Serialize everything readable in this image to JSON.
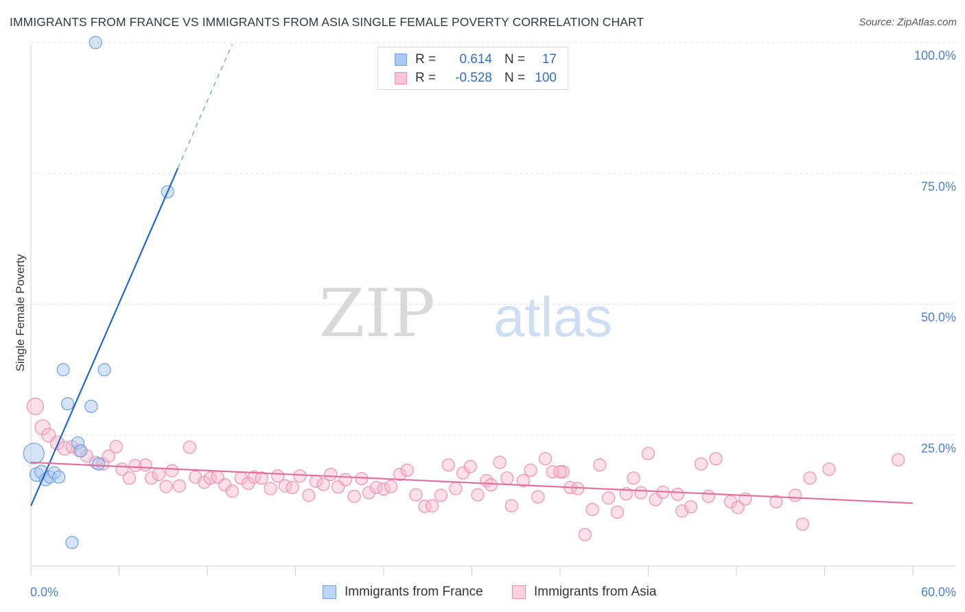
{
  "header": {
    "title": "IMMIGRANTS FROM FRANCE VS IMMIGRANTS FROM ASIA SINGLE FEMALE POVERTY CORRELATION CHART",
    "source": "Source: ZipAtlas.com"
  },
  "legend": {
    "rows": [
      {
        "r_label": "R =",
        "r_value": "0.614",
        "n_label": "N =",
        "n_value": "17"
      },
      {
        "r_label": "R =",
        "r_value": "-0.528",
        "n_label": "N =",
        "n_value": "100"
      }
    ]
  },
  "colors": {
    "france_fill": "#a9c8f2",
    "france_stroke": "#6c9fe0",
    "france_line": "#2266cc",
    "asia_fill": "#f8b8ce",
    "asia_stroke": "#ee8fb0",
    "asia_line": "#e0709a",
    "axis_label": "#4a7fcf",
    "grid": "#dddddd"
  },
  "watermark": {
    "part1": "ZIP",
    "part2": "atlas"
  },
  "chart_data": {
    "type": "scatter",
    "title": "IMMIGRANTS FROM FRANCE VS IMMIGRANTS FROM ASIA SINGLE FEMALE POVERTY CORRELATION CHART",
    "xlabel": "",
    "ylabel": "Single Female Poverty",
    "xlim": [
      0,
      60
    ],
    "ylim": [
      0,
      100
    ],
    "x_tick_labels": [
      "0.0%",
      "60.0%"
    ],
    "y_tick_labels": [
      "25.0%",
      "50.0%",
      "75.0%",
      "100.0%"
    ],
    "y_ticks": [
      25,
      50,
      75,
      100
    ],
    "grid": true,
    "series": [
      {
        "name": "Immigrants from France",
        "r": 0.614,
        "n": 17,
        "trend": {
          "x0": 0,
          "y0": 11.5,
          "x1": 10.0,
          "y1": 76.0,
          "dash_to_x": 13.7,
          "dash_to_y": 99.7
        },
        "points": [
          {
            "x": 0.2,
            "y": 21.5,
            "s": 26
          },
          {
            "x": 0.4,
            "y": 17.5,
            "s": 16
          },
          {
            "x": 0.7,
            "y": 18.0,
            "s": 15
          },
          {
            "x": 1.0,
            "y": 16.5,
            "s": 14
          },
          {
            "x": 1.3,
            "y": 17.0,
            "s": 14
          },
          {
            "x": 1.6,
            "y": 17.8,
            "s": 14
          },
          {
            "x": 1.9,
            "y": 17.0,
            "s": 14
          },
          {
            "x": 2.2,
            "y": 37.5,
            "s": 14
          },
          {
            "x": 2.5,
            "y": 31.0,
            "s": 14
          },
          {
            "x": 2.8,
            "y": 4.5,
            "s": 14
          },
          {
            "x": 3.2,
            "y": 23.5,
            "s": 14
          },
          {
            "x": 3.4,
            "y": 22.0,
            "s": 14
          },
          {
            "x": 4.1,
            "y": 30.5,
            "s": 14
          },
          {
            "x": 4.4,
            "y": 100.0,
            "s": 14
          },
          {
            "x": 4.6,
            "y": 19.5,
            "s": 14
          },
          {
            "x": 5.0,
            "y": 37.5,
            "s": 14
          },
          {
            "x": 9.3,
            "y": 71.5,
            "s": 14
          }
        ]
      },
      {
        "name": "Immigrants from Asia",
        "r": -0.528,
        "n": 100,
        "trend": {
          "x0": 0,
          "y0": 19.8,
          "x1": 60,
          "y1": 12.0
        },
        "points": [
          {
            "x": 0.3,
            "y": 30.5,
            "s": 20
          },
          {
            "x": 0.8,
            "y": 26.5,
            "s": 18
          },
          {
            "x": 1.2,
            "y": 25.0,
            "s": 16
          },
          {
            "x": 1.8,
            "y": 23.5,
            "s": 16
          },
          {
            "x": 2.3,
            "y": 22.5,
            "s": 16
          },
          {
            "x": 2.8,
            "y": 22.8,
            "s": 14
          },
          {
            "x": 3.3,
            "y": 22.0,
            "s": 14
          },
          {
            "x": 3.8,
            "y": 21.0,
            "s": 14
          },
          {
            "x": 4.4,
            "y": 19.8,
            "s": 14
          },
          {
            "x": 4.9,
            "y": 19.5,
            "s": 14
          },
          {
            "x": 5.3,
            "y": 21.0,
            "s": 14
          },
          {
            "x": 5.8,
            "y": 22.8,
            "s": 14
          },
          {
            "x": 6.2,
            "y": 18.5,
            "s": 14
          },
          {
            "x": 6.7,
            "y": 16.8,
            "s": 14
          },
          {
            "x": 7.1,
            "y": 19.2,
            "s": 14
          },
          {
            "x": 7.8,
            "y": 19.3,
            "s": 14
          },
          {
            "x": 8.2,
            "y": 16.8,
            "s": 14
          },
          {
            "x": 8.7,
            "y": 17.5,
            "s": 14
          },
          {
            "x": 9.2,
            "y": 15.2,
            "s": 14
          },
          {
            "x": 9.6,
            "y": 18.2,
            "s": 14
          },
          {
            "x": 10.1,
            "y": 15.3,
            "s": 14
          },
          {
            "x": 10.8,
            "y": 22.7,
            "s": 14
          },
          {
            "x": 11.2,
            "y": 17.0,
            "s": 14
          },
          {
            "x": 11.8,
            "y": 16.0,
            "s": 14
          },
          {
            "x": 12.2,
            "y": 16.8,
            "s": 14
          },
          {
            "x": 12.7,
            "y": 17.0,
            "s": 14
          },
          {
            "x": 13.2,
            "y": 15.5,
            "s": 14
          },
          {
            "x": 13.7,
            "y": 14.3,
            "s": 14
          },
          {
            "x": 14.3,
            "y": 16.8,
            "s": 14
          },
          {
            "x": 14.8,
            "y": 15.8,
            "s": 14
          },
          {
            "x": 15.2,
            "y": 17.0,
            "s": 14
          },
          {
            "x": 15.7,
            "y": 16.8,
            "s": 14
          },
          {
            "x": 16.3,
            "y": 14.8,
            "s": 14
          },
          {
            "x": 16.8,
            "y": 17.2,
            "s": 14
          },
          {
            "x": 17.3,
            "y": 15.3,
            "s": 14
          },
          {
            "x": 17.8,
            "y": 15.0,
            "s": 14
          },
          {
            "x": 18.3,
            "y": 17.2,
            "s": 14
          },
          {
            "x": 18.9,
            "y": 13.5,
            "s": 14
          },
          {
            "x": 19.4,
            "y": 16.2,
            "s": 14
          },
          {
            "x": 19.9,
            "y": 15.6,
            "s": 14
          },
          {
            "x": 20.4,
            "y": 17.5,
            "s": 14
          },
          {
            "x": 20.9,
            "y": 15.1,
            "s": 14
          },
          {
            "x": 21.4,
            "y": 16.5,
            "s": 14
          },
          {
            "x": 22.0,
            "y": 13.3,
            "s": 14
          },
          {
            "x": 22.5,
            "y": 16.7,
            "s": 14
          },
          {
            "x": 23.0,
            "y": 14.0,
            "s": 14
          },
          {
            "x": 23.5,
            "y": 15.0,
            "s": 14
          },
          {
            "x": 24.0,
            "y": 14.7,
            "s": 14
          },
          {
            "x": 24.5,
            "y": 15.2,
            "s": 14
          },
          {
            "x": 25.1,
            "y": 17.5,
            "s": 14
          },
          {
            "x": 25.6,
            "y": 18.3,
            "s": 14
          },
          {
            "x": 26.2,
            "y": 13.6,
            "s": 14
          },
          {
            "x": 26.8,
            "y": 11.4,
            "s": 14
          },
          {
            "x": 27.3,
            "y": 11.5,
            "s": 14
          },
          {
            "x": 27.9,
            "y": 13.5,
            "s": 14
          },
          {
            "x": 28.4,
            "y": 19.3,
            "s": 14
          },
          {
            "x": 28.9,
            "y": 14.8,
            "s": 14
          },
          {
            "x": 29.4,
            "y": 17.8,
            "s": 14
          },
          {
            "x": 29.9,
            "y": 19.0,
            "s": 14
          },
          {
            "x": 30.4,
            "y": 13.6,
            "s": 14
          },
          {
            "x": 31.0,
            "y": 16.3,
            "s": 14
          },
          {
            "x": 31.3,
            "y": 15.5,
            "s": 14
          },
          {
            "x": 31.9,
            "y": 19.8,
            "s": 14
          },
          {
            "x": 32.4,
            "y": 16.8,
            "s": 14
          },
          {
            "x": 32.7,
            "y": 11.5,
            "s": 14
          },
          {
            "x": 33.5,
            "y": 16.3,
            "s": 14
          },
          {
            "x": 34.0,
            "y": 18.3,
            "s": 14
          },
          {
            "x": 34.5,
            "y": 13.2,
            "s": 14
          },
          {
            "x": 35.0,
            "y": 20.5,
            "s": 14
          },
          {
            "x": 35.5,
            "y": 18.0,
            "s": 14
          },
          {
            "x": 36.2,
            "y": 18.0,
            "s": 14
          },
          {
            "x": 36.7,
            "y": 15.0,
            "s": 14
          },
          {
            "x": 37.2,
            "y": 14.8,
            "s": 14
          },
          {
            "x": 37.7,
            "y": 6.0,
            "s": 14
          },
          {
            "x": 38.2,
            "y": 10.8,
            "s": 14
          },
          {
            "x": 38.7,
            "y": 19.3,
            "s": 14
          },
          {
            "x": 39.3,
            "y": 13.0,
            "s": 14
          },
          {
            "x": 39.9,
            "y": 10.3,
            "s": 14
          },
          {
            "x": 40.5,
            "y": 13.8,
            "s": 14
          },
          {
            "x": 41.0,
            "y": 16.8,
            "s": 14
          },
          {
            "x": 41.5,
            "y": 14.0,
            "s": 14
          },
          {
            "x": 42.0,
            "y": 21.5,
            "s": 14
          },
          {
            "x": 42.5,
            "y": 12.7,
            "s": 14
          },
          {
            "x": 43.0,
            "y": 14.1,
            "s": 14
          },
          {
            "x": 44.0,
            "y": 13.7,
            "s": 14
          },
          {
            "x": 44.3,
            "y": 10.5,
            "s": 14
          },
          {
            "x": 44.9,
            "y": 11.3,
            "s": 14
          },
          {
            "x": 45.6,
            "y": 19.5,
            "s": 14
          },
          {
            "x": 46.1,
            "y": 13.3,
            "s": 14
          },
          {
            "x": 46.6,
            "y": 20.5,
            "s": 14
          },
          {
            "x": 47.6,
            "y": 12.3,
            "s": 14
          },
          {
            "x": 48.1,
            "y": 11.2,
            "s": 14
          },
          {
            "x": 48.6,
            "y": 12.8,
            "s": 14
          },
          {
            "x": 50.7,
            "y": 12.3,
            "s": 14
          },
          {
            "x": 52.0,
            "y": 13.5,
            "s": 14
          },
          {
            "x": 52.5,
            "y": 8.0,
            "s": 14
          },
          {
            "x": 53.0,
            "y": 16.8,
            "s": 14
          },
          {
            "x": 54.3,
            "y": 18.5,
            "s": 14
          },
          {
            "x": 59.0,
            "y": 20.3,
            "s": 14
          },
          {
            "x": 36.0,
            "y": 18.0,
            "s": 14
          }
        ]
      }
    ]
  },
  "bottom_legend": {
    "france_label": "Immigrants from France",
    "asia_label": "Immigrants from Asia"
  }
}
